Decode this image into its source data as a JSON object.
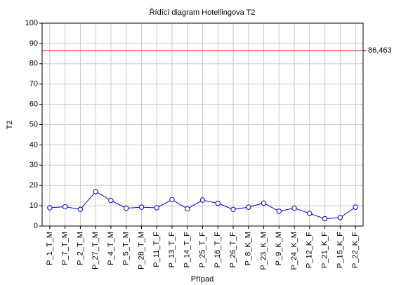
{
  "chart_data": {
    "type": "line",
    "title": "Řídící diagram Hotellingova T2",
    "x_label": "Případ",
    "y_label": "T2",
    "categories": [
      "P_1_T_M",
      "P_7_T_M",
      "P_2_T_M",
      "P_27_T_M",
      "P_4_T_M",
      "P_5_T_M",
      "P_28_T_M",
      "P_11_T_F",
      "P_13_T_F",
      "P_14_T_F",
      "P_25_T_F",
      "P_16_T_F",
      "P_26_T_F",
      "P_8_K_M",
      "P_23_K_M",
      "P_9_K_M",
      "P_24_K_M",
      "P_12_K_F",
      "P_21_K_F",
      "P_15_K_F",
      "P_22_K_F"
    ],
    "values": [
      9,
      9.5,
      8.2,
      17,
      12.6,
      8.8,
      9.3,
      9,
      13,
      8.5,
      12.8,
      11.2,
      8.2,
      9.3,
      11.3,
      7.3,
      8.8,
      6.2,
      3.6,
      4.2,
      9.3
    ],
    "color": "#0000cc",
    "control_limit": {
      "value": 86.463,
      "label": "86,463",
      "color": "#ff0000"
    },
    "ylim": [
      0,
      100
    ],
    "yticks": [
      0,
      10,
      20,
      30,
      40,
      50,
      60,
      70,
      80,
      90,
      100
    ],
    "grid": true
  }
}
